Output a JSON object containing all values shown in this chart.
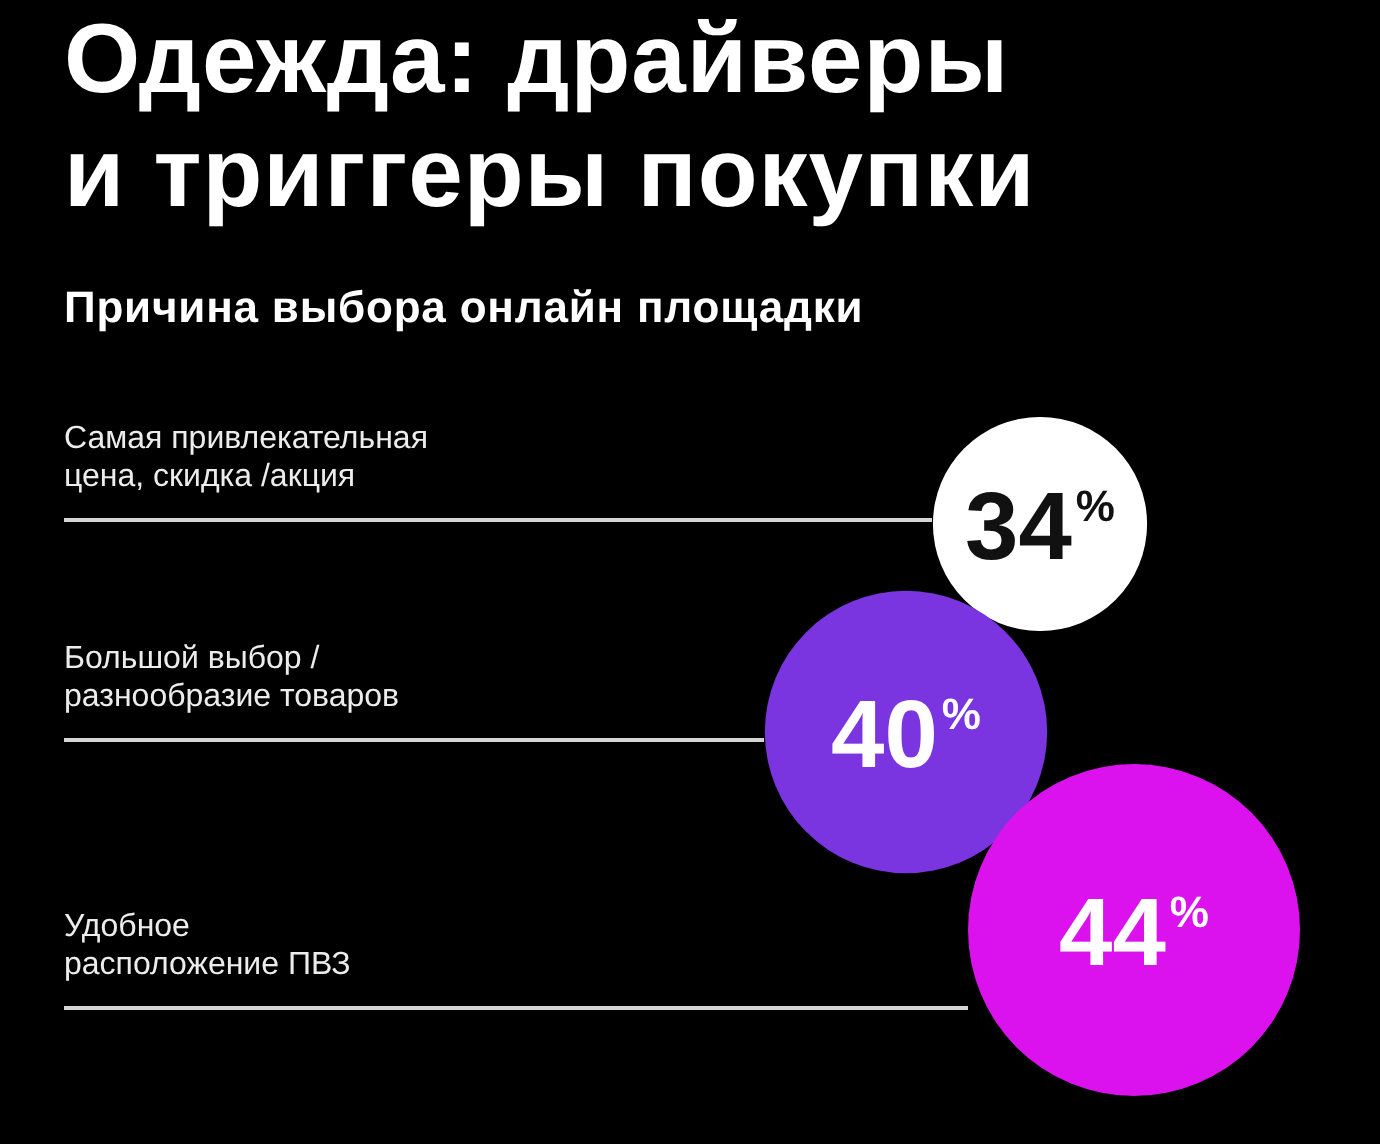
{
  "chart_data": {
    "type": "other",
    "title": "Одежда: драйверы\nи триггеры покупки",
    "subtitle": "Причина выбора онлайн площадки",
    "categories": [
      "Самая привлекательная\nцена, скидка /акция",
      "Большой выбор /\nразнообразие товаров",
      "Удобное\nрасположение ПВЗ"
    ],
    "values": [
      34,
      40,
      44
    ],
    "colors": [
      "#ffffff",
      "#7b35e0",
      "#dc12ee"
    ],
    "value_labels": [
      "34$^{%}$",
      "40$^{%}$",
      "44$^{%}$"
    ]
  }
}
